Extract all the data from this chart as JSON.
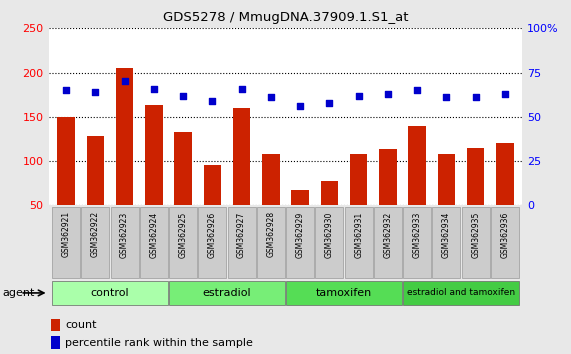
{
  "title": "GDS5278 / MmugDNA.37909.1.S1_at",
  "samples": [
    "GSM362921",
    "GSM362922",
    "GSM362923",
    "GSM362924",
    "GSM362925",
    "GSM362926",
    "GSM362927",
    "GSM362928",
    "GSM362929",
    "GSM362930",
    "GSM362931",
    "GSM362932",
    "GSM362933",
    "GSM362934",
    "GSM362935",
    "GSM362936"
  ],
  "counts": [
    150,
    128,
    205,
    163,
    133,
    95,
    160,
    108,
    67,
    77,
    108,
    114,
    140,
    108,
    115,
    120
  ],
  "percentile_ranks": [
    65,
    64,
    70,
    66,
    62,
    59,
    66,
    61,
    56,
    58,
    62,
    63,
    65,
    61,
    61,
    63
  ],
  "bar_color": "#cc2200",
  "dot_color": "#0000cc",
  "ylim_left": [
    50,
    250
  ],
  "ylim_right": [
    0,
    100
  ],
  "yticks_left": [
    50,
    100,
    150,
    200,
    250
  ],
  "ytick_labels_left": [
    "50",
    "100",
    "150",
    "200",
    "250"
  ],
  "yticks_right": [
    0,
    25,
    50,
    75,
    100
  ],
  "ytick_labels_right": [
    "0",
    "25",
    "50",
    "75",
    "100%"
  ],
  "groups": [
    {
      "label": "control",
      "start": 0,
      "end": 3,
      "color": "#aaffaa"
    },
    {
      "label": "estradiol",
      "start": 4,
      "end": 7,
      "color": "#77ee77"
    },
    {
      "label": "tamoxifen",
      "start": 8,
      "end": 11,
      "color": "#55dd55"
    },
    {
      "label": "estradiol and tamoxifen",
      "start": 12,
      "end": 15,
      "color": "#44cc44"
    }
  ],
  "agent_label": "agent",
  "legend_count_label": "count",
  "legend_percentile_label": "percentile rank within the sample",
  "background_color": "#e8e8e8",
  "plot_bg_color": "#ffffff",
  "tick_bg_color": "#d0d0d0",
  "grid_linestyle": ":",
  "grid_linewidth": 0.8,
  "grid_color": "#000000"
}
